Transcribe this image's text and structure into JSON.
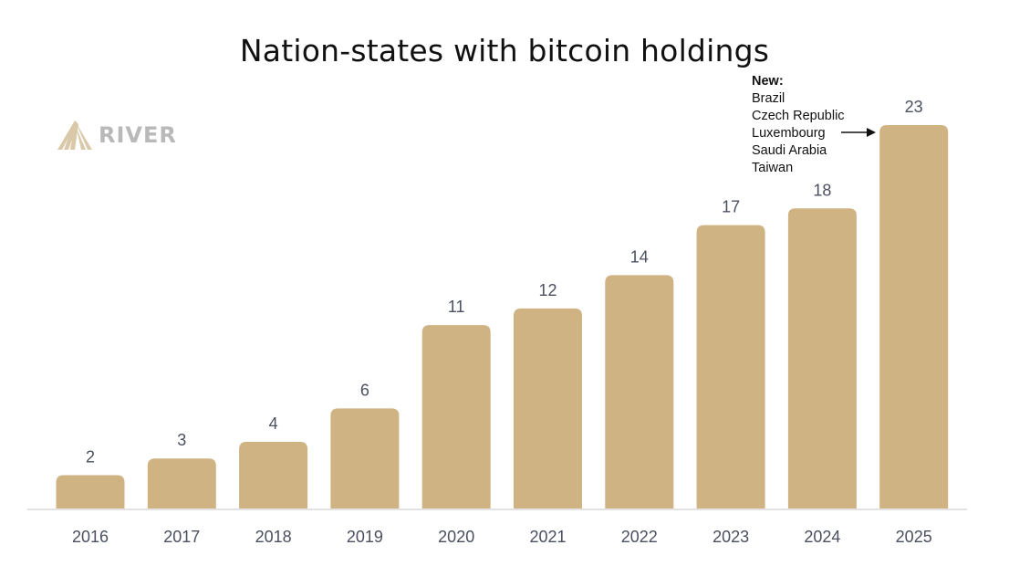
{
  "header": {
    "title": "Nation-states with bitcoin holdings"
  },
  "brand": {
    "logo_text": "RIVER",
    "logo_color": "#b9b9b9"
  },
  "annotation": {
    "heading": "New:",
    "items": [
      "Brazil",
      "Czech Republic",
      "Luxembourg",
      "Saudi Arabia",
      "Taiwan"
    ],
    "points_to": "2025"
  },
  "chart_data": {
    "type": "bar",
    "title": "Nation-states with bitcoin holdings",
    "xlabel": "",
    "ylabel": "",
    "categories": [
      "2016",
      "2017",
      "2018",
      "2019",
      "2020",
      "2021",
      "2022",
      "2023",
      "2024",
      "2025"
    ],
    "values": [
      2,
      3,
      4,
      6,
      11,
      12,
      14,
      17,
      18,
      23
    ],
    "ylim": [
      0,
      23
    ],
    "grid": false,
    "data_labels": true,
    "bar_color": "#cfb383",
    "label_color": "#4b5060",
    "axis_color": "#d8d8d8"
  }
}
